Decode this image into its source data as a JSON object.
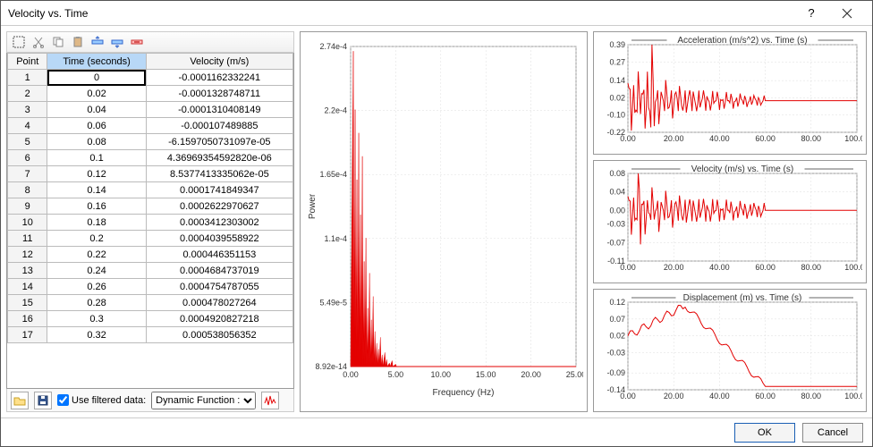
{
  "window": {
    "title": "Velocity vs. Time"
  },
  "table": {
    "columns": [
      "Point",
      "Time (seconds)",
      "Velocity (m/s)"
    ],
    "selected_col": 1,
    "selected_row": 0,
    "rows": [
      [
        1,
        "0",
        "-0.0001162332241"
      ],
      [
        2,
        "0.02",
        "-0.0001328748711"
      ],
      [
        3,
        "0.04",
        "-0.0001310408149"
      ],
      [
        4,
        "0.06",
        "-0.000107489885"
      ],
      [
        5,
        "0.08",
        "-6.1597050731097e-05"
      ],
      [
        6,
        "0.1",
        "4.36969354592820e-06"
      ],
      [
        7,
        "0.12",
        "8.5377413335062e-05"
      ],
      [
        8,
        "0.14",
        "0.0001741849347"
      ],
      [
        9,
        "0.16",
        "0.0002622970627"
      ],
      [
        10,
        "0.18",
        "0.0003412303002"
      ],
      [
        11,
        "0.2",
        "0.0004039558922"
      ],
      [
        12,
        "0.22",
        "0.000446351153"
      ],
      [
        13,
        "0.24",
        "0.0004684737019"
      ],
      [
        14,
        "0.26",
        "0.0004754787055"
      ],
      [
        15,
        "0.28",
        "0.000478027264"
      ],
      [
        16,
        "0.3",
        "0.0004920827218"
      ],
      [
        17,
        "0.32",
        "0.000538056352"
      ]
    ]
  },
  "bottom": {
    "use_filtered_label": "Use filtered data:",
    "use_filtered_checked": true,
    "dropdown_value": "Dynamic Function :",
    "dropdown_options": [
      "Dynamic Function :"
    ]
  },
  "footer": {
    "ok": "OK",
    "cancel": "Cancel"
  },
  "center_chart": {
    "type": "spectrum",
    "xlabel": "Frequency (Hz)",
    "ylabel": "Power",
    "xlim": [
      0,
      25
    ],
    "xticks": [
      0.0,
      5.0,
      10.0,
      15.0,
      20.0,
      25.0
    ],
    "ylim": [
      0,
      0.000274
    ],
    "yticks": [
      "8.92e-14",
      "5.49e-5",
      "1.1e-4",
      "1.65e-4",
      "2.2e-4",
      "2.74e-4"
    ],
    "plot_color": "#e30000",
    "grid_color": "#dddddd",
    "background": "#ffffff",
    "peaks": [
      [
        0.3,
        0.00027
      ],
      [
        0.5,
        0.00022
      ],
      [
        0.7,
        0.00016
      ],
      [
        0.9,
        0.0002
      ],
      [
        1.1,
        0.00013
      ],
      [
        1.3,
        0.00018
      ],
      [
        1.5,
        9e-05
      ],
      [
        1.7,
        0.00011
      ],
      [
        1.9,
        5e-05
      ],
      [
        2.1,
        8e-05
      ],
      [
        2.3,
        4e-05
      ],
      [
        2.5,
        6e-05
      ],
      [
        2.7,
        3e-05
      ],
      [
        2.9,
        2e-05
      ],
      [
        3.1,
        1.5e-05
      ],
      [
        3.3,
        2.5e-05
      ],
      [
        3.5,
        1e-05
      ],
      [
        3.8,
        1.2e-05
      ],
      [
        4.0,
        6e-06
      ],
      [
        4.3,
        3e-06
      ],
      [
        4.6,
        5e-06
      ],
      [
        5.0,
        2e-06
      ]
    ]
  },
  "mini_charts": [
    {
      "title": "Acceleration (m/s^2) vs. Time (s)",
      "xlim": [
        0,
        100
      ],
      "xticks": [
        0.0,
        20.0,
        40.0,
        60.0,
        80.0,
        100.0
      ],
      "ylim": [
        -0.22,
        0.39
      ],
      "yticks": [
        -0.22,
        -0.1,
        0.02,
        0.14,
        0.27,
        0.39
      ],
      "plot_color": "#e30000",
      "noise_amp_start": 0.28,
      "noise_decay": 0.03,
      "flat_after": 60
    },
    {
      "title": "Velocity (m/s) vs. Time (s)",
      "xlim": [
        0,
        100
      ],
      "xticks": [
        0.0,
        20.0,
        40.0,
        60.0,
        80.0,
        100.0
      ],
      "ylim": [
        -0.11,
        0.08
      ],
      "yticks": [
        -0.11,
        -0.07,
        -0.03,
        0.0,
        0.04,
        0.08
      ],
      "plot_color": "#e30000",
      "noise_amp_start": 0.07,
      "noise_decay": 0.02,
      "flat_after": 60
    },
    {
      "title": "Displacement (m) vs. Time (s)",
      "xlim": [
        0,
        100
      ],
      "xticks": [
        0.0,
        20.0,
        40.0,
        60.0,
        80.0,
        100.0
      ],
      "ylim": [
        -0.14,
        0.12
      ],
      "yticks": [
        -0.14,
        -0.09,
        -0.03,
        0.02,
        0.07,
        0.12
      ],
      "plot_color": "#e30000",
      "curve": true
    }
  ],
  "colors": {
    "accent_blue": "#1a5fb4",
    "header_sel": "#b8d8f7",
    "plot_red": "#e30000"
  }
}
